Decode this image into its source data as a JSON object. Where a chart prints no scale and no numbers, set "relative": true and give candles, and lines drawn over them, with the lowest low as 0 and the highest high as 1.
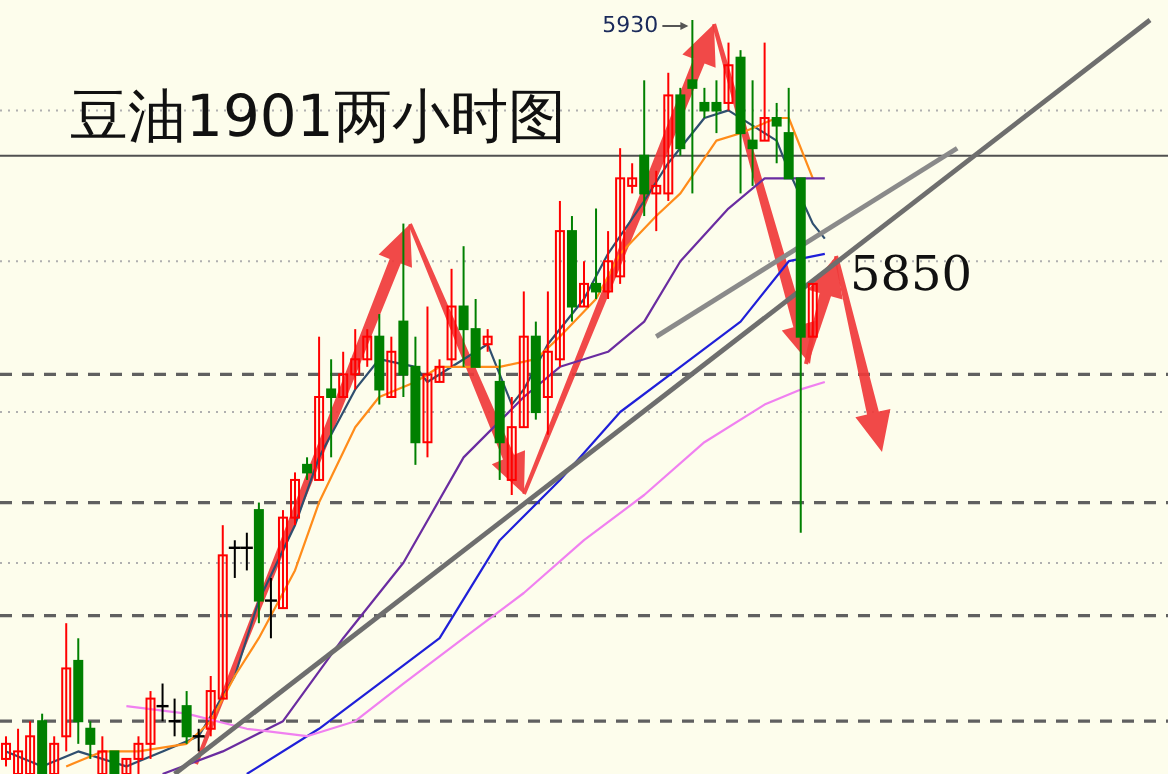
{
  "chart_data": {
    "type": "candlestick",
    "title": "豆油1901两小时图",
    "relative": true,
    "categories": [
      null,
      null,
      null,
      null,
      null,
      null,
      null,
      null,
      null,
      null,
      null,
      null,
      null,
      null,
      null,
      null,
      null,
      null,
      null,
      null,
      null,
      null,
      null,
      null,
      null,
      null,
      null,
      null,
      null,
      null,
      null,
      null,
      null,
      null,
      null,
      null,
      null,
      null,
      null,
      null,
      null,
      null,
      null,
      null,
      null,
      null,
      null,
      null,
      null,
      null,
      null,
      null,
      null,
      null,
      null,
      null,
      null,
      null,
      null,
      null,
      null,
      null,
      null,
      null,
      null,
      null,
      null,
      null,
      null,
      null,
      null,
      null,
      null,
      null,
      null,
      null,
      null,
      null,
      null,
      null,
      null,
      null,
      null,
      null,
      null,
      null,
      null,
      null,
      null,
      null,
      null,
      null,
      null,
      null,
      null,
      null,
      null
    ],
    "ohlc": [
      [
        0.02,
        0.05,
        0.01,
        0.04
      ],
      [
        0,
        0.06,
        0,
        0.03
      ],
      [
        0,
        0.07,
        0,
        0.05
      ],
      [
        0.07,
        0.08,
        0,
        0
      ],
      [
        0,
        0.05,
        0,
        0.04
      ],
      [
        0.05,
        0.2,
        0.03,
        0.14
      ],
      [
        0.15,
        0.18,
        0.04,
        0.07
      ],
      [
        0.06,
        0.07,
        0.02,
        0.04
      ],
      [
        0,
        0.05,
        0,
        0.03
      ],
      [
        0.03,
        0.03,
        0,
        0
      ],
      [
        0,
        0.02,
        0,
        0.02
      ],
      [
        0.02,
        0.05,
        0,
        0.04
      ],
      [
        0.04,
        0.11,
        0.02,
        0.1
      ],
      [
        0.09,
        0.12,
        0.07,
        0.09
      ],
      [
        0.07,
        0.1,
        0.05,
        0.07
      ],
      [
        0.09,
        0.11,
        0.04,
        0.05
      ],
      [
        0.05,
        0.06,
        0.03,
        0.05
      ],
      [
        0.06,
        0.13,
        0.05,
        0.11
      ],
      [
        0.1,
        0.33,
        0.1,
        0.29
      ],
      [
        0.3,
        0.31,
        0.26,
        0.3
      ],
      [
        0.3,
        0.32,
        0.27,
        0.3
      ],
      [
        0.35,
        0.36,
        0.2,
        0.23
      ],
      [
        0.23,
        0.26,
        0.18,
        0.23
      ],
      [
        0.22,
        0.35,
        0.22,
        0.34
      ],
      [
        0.34,
        0.4,
        0.33,
        0.39
      ],
      [
        0.41,
        0.42,
        0.39,
        0.4
      ],
      [
        0.39,
        0.58,
        0.39,
        0.5
      ],
      [
        0.51,
        0.55,
        0.42,
        0.5
      ],
      [
        0.5,
        0.56,
        0.5,
        0.53
      ],
      [
        0.53,
        0.59,
        0.51,
        0.55
      ],
      [
        0.55,
        0.59,
        0.54,
        0.58
      ],
      [
        0.58,
        0.61,
        0.49,
        0.51
      ],
      [
        0.5,
        0.58,
        0.5,
        0.56
      ],
      [
        0.6,
        0.73,
        0.5,
        0.53
      ],
      [
        0.54,
        0.58,
        0.41,
        0.44
      ],
      [
        0.44,
        0.62,
        0.42,
        0.53
      ],
      [
        0.52,
        0.55,
        0.52,
        0.54
      ],
      [
        0.55,
        0.67,
        0.54,
        0.62
      ],
      [
        0.62,
        0.7,
        0.54,
        0.59
      ],
      [
        0.59,
        0.63,
        0.54,
        0.54
      ],
      [
        0.57,
        0.59,
        0.56,
        0.58
      ],
      [
        0.52,
        0.55,
        0.39,
        0.44
      ],
      [
        0.39,
        0.5,
        0.37,
        0.46
      ],
      [
        0.46,
        0.64,
        0.46,
        0.58
      ],
      [
        0.58,
        0.6,
        0.47,
        0.48
      ],
      [
        0.5,
        0.64,
        0.45,
        0.56
      ],
      [
        0.55,
        0.76,
        0.54,
        0.72
      ],
      [
        0.72,
        0.74,
        0.6,
        0.62
      ],
      [
        0.62,
        0.68,
        0.62,
        0.65
      ],
      [
        0.65,
        0.75,
        0.63,
        0.64
      ],
      [
        0.64,
        0.72,
        0.63,
        0.68
      ],
      [
        0.66,
        0.83,
        0.65,
        0.79
      ],
      [
        0.78,
        0.81,
        0.77,
        0.79
      ],
      [
        0.82,
        0.92,
        0.74,
        0.77
      ],
      [
        0.77,
        0.8,
        0.72,
        0.78
      ],
      [
        0.77,
        0.93,
        0.76,
        0.9
      ],
      [
        0.9,
        0.91,
        0.82,
        0.83
      ],
      [
        0.92,
        1,
        0.77,
        0.91
      ],
      [
        0.89,
        0.91,
        0.87,
        0.88
      ],
      [
        0.89,
        0.92,
        0.85,
        0.88
      ],
      [
        0.89,
        0.97,
        0.88,
        0.94
      ],
      [
        0.95,
        0.96,
        0.77,
        0.85
      ],
      [
        0.84,
        0.92,
        0.78,
        0.83
      ],
      [
        0.84,
        0.97,
        0.84,
        0.87
      ],
      [
        0.87,
        0.89,
        0.81,
        0.86
      ],
      [
        0.85,
        0.91,
        0.79,
        0.79
      ],
      [
        0.79,
        0.79,
        0.32,
        0.58
      ],
      [
        0.58,
        0.65,
        0.58,
        0.65
      ],
      null,
      null,
      null,
      null,
      null,
      null,
      null,
      null,
      null,
      null,
      null,
      null,
      null,
      null,
      null,
      null,
      null,
      null,
      null,
      null,
      null,
      null,
      null,
      null,
      null,
      null,
      null,
      null,
      null
    ],
    "series": [
      {
        "type": "line",
        "color": "#2f4f6f",
        "values": [
          0.03,
          null,
          null,
          0.01,
          null,
          null,
          0.03,
          null,
          null,
          null,
          0.01,
          null,
          null,
          0.03,
          null,
          null,
          0.05,
          null,
          null,
          0.13,
          null,
          0.23,
          null,
          null,
          0.33,
          null,
          0.42,
          null,
          null,
          0.51,
          null,
          0.55,
          null,
          null,
          0.54,
          0.52,
          null,
          null,
          null,
          null,
          0.57,
          null,
          0.49,
          0.51,
          null,
          0.57,
          null,
          null,
          0.63,
          null,
          0.69,
          null,
          null,
          0.76,
          null,
          0.81,
          null,
          null,
          0.87,
          null,
          0.88,
          null,
          null,
          null,
          0.84,
          0.8,
          null,
          0.73,
          0.71,
          null,
          null,
          null,
          null,
          null,
          null,
          null,
          null,
          null,
          null,
          null,
          null,
          null,
          null,
          null,
          null,
          null,
          null,
          null,
          null,
          null,
          null,
          null,
          null,
          null,
          null,
          null,
          null
        ]
      },
      {
        "type": "line",
        "color": "#ff8c1a",
        "values": [
          null,
          null,
          null,
          null,
          null,
          0.01,
          null,
          null,
          0.03,
          null,
          null,
          0.03,
          null,
          null,
          null,
          0.04,
          null,
          0.07,
          null,
          0.13,
          null,
          0.18,
          null,
          null,
          0.27,
          null,
          0.36,
          null,
          null,
          0.46,
          null,
          0.5,
          null,
          null,
          0.52,
          null,
          0.54,
          null,
          null,
          0.54,
          null,
          0.54,
          null,
          null,
          0.55,
          null,
          0.58,
          null,
          null,
          0.63,
          null,
          0.69,
          null,
          null,
          0.74,
          null,
          0.77,
          null,
          null,
          0.84,
          null,
          0.85,
          null,
          null,
          0.87,
          0.87,
          null,
          0.79,
          null,
          null,
          null,
          null,
          null,
          null,
          null,
          null,
          null,
          null,
          null,
          null,
          null,
          null,
          null,
          null,
          null,
          null,
          null,
          null,
          null,
          null,
          null,
          null,
          null,
          null,
          null,
          null,
          null
        ]
      },
      {
        "type": "line",
        "color": "#6a2ca0",
        "values": [
          null,
          null,
          null,
          null,
          null,
          null,
          null,
          null,
          null,
          null,
          null,
          null,
          null,
          0,
          null,
          null,
          null,
          null,
          0.03,
          null,
          null,
          null,
          null,
          0.07,
          null,
          null,
          null,
          null,
          0.18,
          null,
          null,
          null,
          null,
          0.28,
          null,
          null,
          null,
          null,
          0.42,
          null,
          null,
          null,
          null,
          0.5,
          null,
          null,
          0.54,
          null,
          null,
          null,
          0.56,
          null,
          null,
          0.6,
          null,
          null,
          0.68,
          null,
          null,
          null,
          0.75,
          null,
          null,
          0.79,
          null,
          0.79,
          null,
          null,
          0.79,
          null,
          null,
          null,
          null,
          null,
          null,
          null,
          null,
          null,
          null,
          null,
          null,
          null,
          null,
          null,
          null,
          null,
          null,
          null,
          null,
          null,
          null,
          null,
          null,
          null,
          null,
          null,
          null
        ]
      },
      {
        "type": "line",
        "color": "#1f1fd8",
        "values": [
          null,
          null,
          null,
          null,
          null,
          null,
          null,
          null,
          null,
          null,
          null,
          null,
          null,
          null,
          null,
          null,
          null,
          null,
          null,
          null,
          0,
          null,
          null,
          null,
          null,
          null,
          0.06,
          null,
          null,
          null,
          null,
          0.12,
          null,
          null,
          null,
          null,
          0.18,
          null,
          null,
          null,
          null,
          0.31,
          null,
          null,
          null,
          null,
          0.39,
          null,
          null,
          null,
          null,
          0.48,
          null,
          null,
          null,
          null,
          0.54,
          null,
          null,
          null,
          null,
          0.6,
          null,
          null,
          null,
          0.68,
          null,
          null,
          0.69,
          null,
          null,
          null,
          null,
          null,
          null,
          null,
          null,
          null,
          null,
          null,
          null,
          null,
          null,
          null,
          null,
          null,
          null,
          null,
          null,
          null,
          null,
          null,
          null,
          null,
          null,
          null,
          null
        ]
      },
      {
        "type": "line",
        "color": "#f080f0",
        "values": [
          null,
          null,
          null,
          null,
          null,
          null,
          null,
          null,
          null,
          null,
          0.09,
          null,
          null,
          null,
          null,
          0.08,
          null,
          null,
          null,
          null,
          0.06,
          null,
          null,
          null,
          null,
          0.05,
          null,
          null,
          null,
          0.07,
          null,
          null,
          null,
          0.12,
          null,
          null,
          null,
          null,
          0.18,
          null,
          null,
          null,
          null,
          0.24,
          null,
          null,
          null,
          null,
          0.31,
          null,
          null,
          null,
          null,
          0.37,
          null,
          null,
          null,
          null,
          0.44,
          null,
          null,
          null,
          null,
          0.49,
          null,
          null,
          0.51,
          null,
          0.52,
          null,
          null,
          null,
          null,
          null,
          null,
          null,
          null,
          null,
          null,
          null,
          null,
          null,
          null,
          null,
          null,
          null,
          null,
          null,
          null,
          null,
          null,
          null,
          null,
          null,
          null,
          null,
          null
        ]
      },
      {
        "type": "line",
        "color": "#6e6e6e",
        "values": [
          null,
          null,
          null,
          null,
          null,
          null,
          null,
          null,
          null,
          null,
          null,
          null,
          null,
          null,
          0,
          null,
          null,
          null,
          null,
          null,
          null,
          null,
          null,
          null,
          null,
          null,
          null,
          null,
          null,
          null,
          null,
          null,
          null,
          null,
          null,
          null,
          null,
          null,
          null,
          null,
          null,
          null,
          null,
          null,
          null,
          null,
          null,
          null,
          null,
          null,
          null,
          null,
          null,
          null,
          null,
          null,
          null,
          null,
          null,
          null,
          null,
          null,
          null,
          null,
          null,
          null,
          null,
          null,
          null,
          null,
          null,
          null,
          null,
          null,
          null,
          null,
          null,
          null,
          null,
          null,
          null,
          null,
          null,
          null,
          null,
          null,
          null,
          null,
          null,
          null,
          null,
          null,
          null,
          null,
          null,
          1,
          null
        ]
      },
      {
        "type": "line",
        "color": "#8a8a8a",
        "values": [
          null,
          null,
          null,
          null,
          null,
          null,
          null,
          null,
          null,
          null,
          null,
          null,
          null,
          null,
          null,
          null,
          null,
          null,
          null,
          null,
          null,
          null,
          null,
          null,
          null,
          null,
          null,
          null,
          null,
          null,
          null,
          null,
          null,
          null,
          null,
          null,
          null,
          null,
          null,
          null,
          null,
          null,
          null,
          null,
          null,
          null,
          null,
          null,
          null,
          null,
          null,
          null,
          null,
          null,
          0.58,
          null,
          null,
          null,
          null,
          null,
          null,
          null,
          null,
          null,
          null,
          null,
          null,
          null,
          null,
          null,
          null,
          null,
          null,
          null,
          null,
          null,
          null,
          null,
          null,
          0.83,
          null,
          null,
          null,
          null,
          null,
          null,
          null,
          null,
          null,
          null,
          null,
          null,
          null,
          null,
          null,
          null,
          null
        ]
      }
    ],
    "ref_lines": [
      {
        "axis": "y",
        "value": 0.82,
        "color": "#505050",
        "line_style": "solid"
      },
      {
        "axis": "y",
        "value": 0.53,
        "color": "#606060",
        "line_style": "dashed"
      },
      {
        "axis": "y",
        "value": 0.36,
        "color": "#606060",
        "line_style": "dashed"
      },
      {
        "axis": "y",
        "value": 0.21,
        "color": "#606060",
        "line_style": "dashed"
      },
      {
        "axis": "y",
        "value": 0.07,
        "color": "#606060",
        "line_style": "dashed"
      },
      {
        "axis": "y",
        "value": 0.88,
        "color": "#b0b0b0",
        "line_style": "dotted"
      },
      {
        "axis": "y",
        "value": 0.68,
        "color": "#b0b0b0",
        "line_style": "dotted"
      },
      {
        "axis": "y",
        "value": 0.48,
        "color": "#b0b0b0",
        "line_style": "dotted"
      },
      {
        "axis": "y",
        "value": 0.28,
        "color": "#b0b0b0",
        "line_style": "dotted"
      }
    ],
    "annotations": [
      "5930",
      "5850"
    ]
  }
}
